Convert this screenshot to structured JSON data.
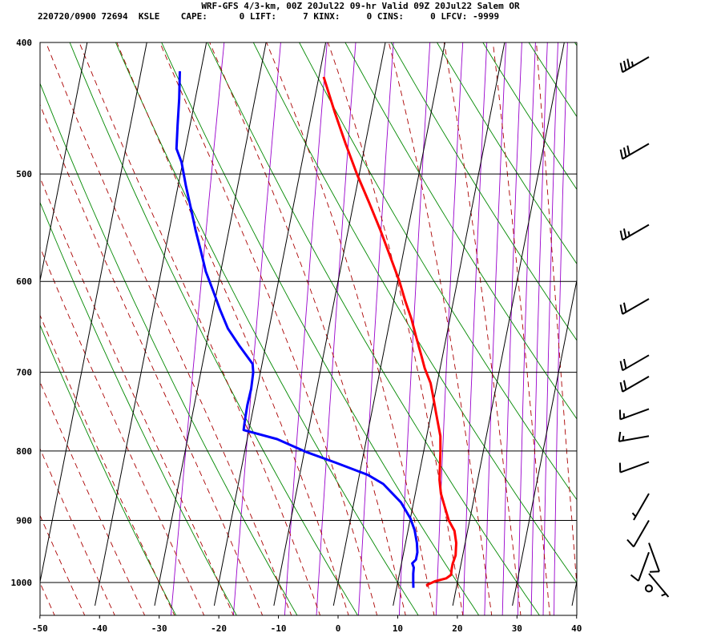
{
  "header": {
    "title": "WRF-GFS 4/3-km, 00Z 20Jul22 09-hr Valid 09Z 20Jul22 Salem OR",
    "stats": "220720/0900 72694  KSLE    CAPE:      0 LIFT:     7 KINX:     0 CINS:     0 LFCV: -9999"
  },
  "chart_data": {
    "type": "line",
    "title": "WRF-GFS 4/3-km, 00Z 20Jul22 09-hr Valid 09Z 20Jul22 Salem OR",
    "xlabel": "",
    "ylabel": "",
    "x_ticks": [
      -50,
      -40,
      -30,
      -20,
      -10,
      0,
      10,
      20,
      30,
      40
    ],
    "y_ticks": [
      400,
      500,
      600,
      700,
      800,
      900,
      1000
    ],
    "xlim": [
      -50,
      40
    ],
    "ylim": [
      1040,
      400
    ],
    "y_scale": "log",
    "grid": true,
    "series": [
      {
        "color": "#ff0000",
        "points": [
          [
            15.2,
            1007
          ],
          [
            15.0,
            1004
          ],
          [
            15.4,
            1002
          ],
          [
            16.2,
            998
          ],
          [
            18.0,
            993
          ],
          [
            18.7,
            987
          ],
          [
            18.6,
            978
          ],
          [
            18.6,
            969
          ],
          [
            18.8,
            955
          ],
          [
            18.5,
            935
          ],
          [
            17.8,
            916
          ],
          [
            16.5,
            900
          ],
          [
            15.4,
            880
          ],
          [
            14.3,
            860
          ],
          [
            13.6,
            840
          ],
          [
            13.2,
            820
          ],
          [
            12.8,
            800
          ],
          [
            12.3,
            780
          ],
          [
            11.8,
            770
          ],
          [
            10.8,
            750
          ],
          [
            9.8,
            730
          ],
          [
            8.9,
            713
          ],
          [
            7.4,
            695
          ],
          [
            6.4,
            680
          ],
          [
            5.0,
            660
          ],
          [
            3.6,
            640
          ],
          [
            1.9,
            620
          ],
          [
            0.3,
            600
          ],
          [
            -2.1,
            575
          ],
          [
            -4.6,
            550
          ],
          [
            -7.4,
            525
          ],
          [
            -10.4,
            500
          ],
          [
            -13.3,
            475
          ],
          [
            -16.2,
            450
          ],
          [
            -19.2,
            424
          ]
        ]
      },
      {
        "color": "#0000ff",
        "points": [
          [
            12.8,
            1009
          ],
          [
            12.5,
            995
          ],
          [
            12.3,
            985
          ],
          [
            12.2,
            975
          ],
          [
            11.8,
            968
          ],
          [
            12.3,
            962
          ],
          [
            12.3,
            950
          ],
          [
            11.9,
            935
          ],
          [
            11.1,
            915
          ],
          [
            10.0,
            897
          ],
          [
            7.9,
            873
          ],
          [
            4.3,
            846
          ],
          [
            1.4,
            833
          ],
          [
            -4.4,
            816
          ],
          [
            -9.8,
            801
          ],
          [
            -15.0,
            784
          ],
          [
            -20.9,
            772
          ],
          [
            -21.0,
            760
          ],
          [
            -21.1,
            740
          ],
          [
            -21.0,
            720
          ],
          [
            -21.2,
            700
          ],
          [
            -21.6,
            690
          ],
          [
            -24.3,
            670
          ],
          [
            -26.9,
            650
          ],
          [
            -28.8,
            630
          ],
          [
            -30.6,
            610
          ],
          [
            -32.5,
            590
          ],
          [
            -34.0,
            570
          ],
          [
            -35.6,
            550
          ],
          [
            -37.1,
            530
          ],
          [
            -38.7,
            510
          ],
          [
            -40.2,
            490
          ],
          [
            -41.5,
            479
          ],
          [
            -42.1,
            460
          ],
          [
            -42.7,
            440
          ],
          [
            -43.5,
            420
          ]
        ]
      }
    ],
    "wind_barbs": [
      {
        "p": 410,
        "dir": 240,
        "speed": 35
      },
      {
        "p": 475,
        "dir": 240,
        "speed": 30
      },
      {
        "p": 545,
        "dir": 240,
        "speed": 25
      },
      {
        "p": 618,
        "dir": 240,
        "speed": 20
      },
      {
        "p": 680,
        "dir": 240,
        "speed": 20
      },
      {
        "p": 705,
        "dir": 240,
        "speed": 20
      },
      {
        "p": 745,
        "dir": 250,
        "speed": 15
      },
      {
        "p": 780,
        "dir": 260,
        "speed": 15
      },
      {
        "p": 815,
        "dir": 250,
        "speed": 10
      },
      {
        "p": 860,
        "dir": 210,
        "speed": 5
      },
      {
        "p": 900,
        "dir": 210,
        "speed": 10
      },
      {
        "p": 935,
        "dir": 160,
        "speed": 10
      },
      {
        "p": 950,
        "dir": 200,
        "speed": 10
      },
      {
        "p": 985,
        "dir": 140,
        "speed": 5
      },
      {
        "p": 1010,
        "dir": 0,
        "speed": 0
      }
    ]
  }
}
